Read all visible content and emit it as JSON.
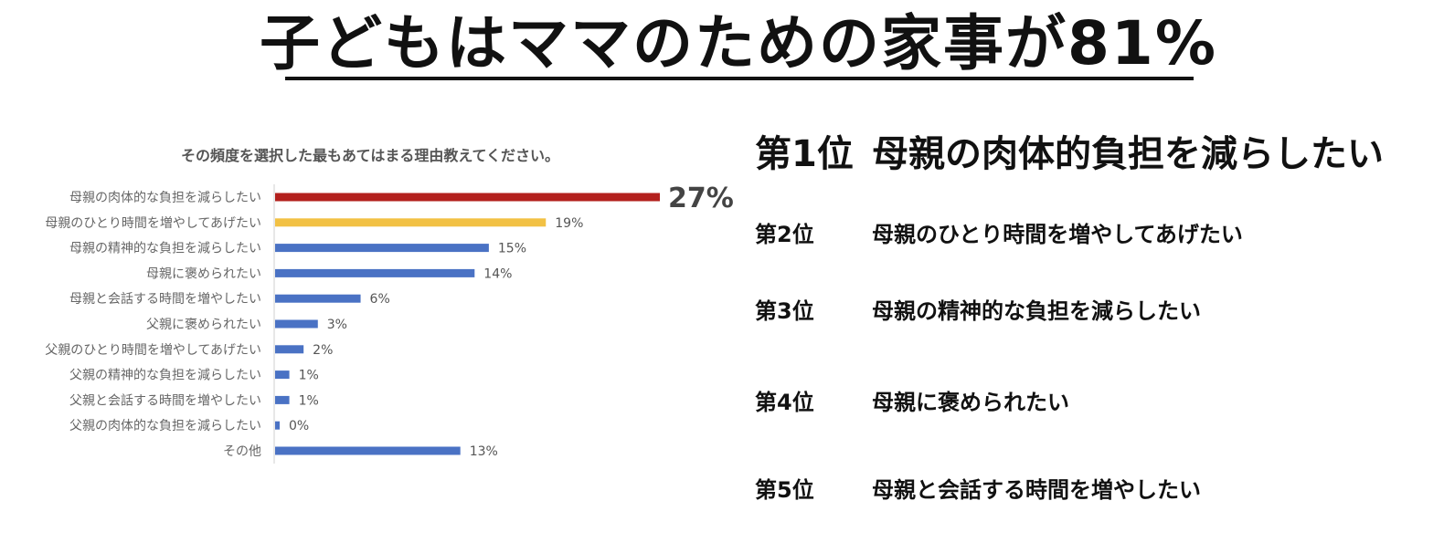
{
  "title": "子どもはママのための家事が81%",
  "chart_data": {
    "type": "bar",
    "orientation": "horizontal",
    "title": "その頻度を選択した最もあてはまる理由教えてください。",
    "categories": [
      "母親の肉体的な負担を減らしたい",
      "母親のひとり時間を増やしてあげたい",
      "母親の精神的な負担を減らしたい",
      "母親に褒められたい",
      "母親と会話する時間を増やしたい",
      "父親に褒められたい",
      "父親のひとり時間を増やしてあげたい",
      "父親の精神的な負担を減らしたい",
      "父親と会話する時間を増やしたい",
      "父親の肉体的な負担を減らしたい",
      "その他"
    ],
    "values": [
      27,
      19,
      15,
      14,
      6,
      3,
      2,
      1,
      1,
      0,
      13
    ],
    "value_labels": [
      "27%",
      "19%",
      "15%",
      "14%",
      "6%",
      "3%",
      "2%",
      "1%",
      "1%",
      "0%",
      "13%"
    ],
    "unit": "%",
    "bar_colors": [
      "#b3201d",
      "#f2c144",
      "#4a72c4",
      "#4a72c4",
      "#4a72c4",
      "#4a72c4",
      "#4a72c4",
      "#4a72c4",
      "#4a72c4",
      "#4a72c4",
      "#4a72c4"
    ],
    "legend": "none",
    "grid": false
  },
  "rankings": [
    {
      "rank": "第1位",
      "reason": "母親の肉体的負担を減らしたい"
    },
    {
      "rank": "第2位",
      "reason": "母親のひとり時間を増やしてあげたい"
    },
    {
      "rank": "第3位",
      "reason": "母親の精神的な負担を減らしたい"
    },
    {
      "rank": "第4位",
      "reason": "母親に褒められたい"
    },
    {
      "rank": "第5位",
      "reason": "母親と会話する時間を増やしたい"
    }
  ]
}
